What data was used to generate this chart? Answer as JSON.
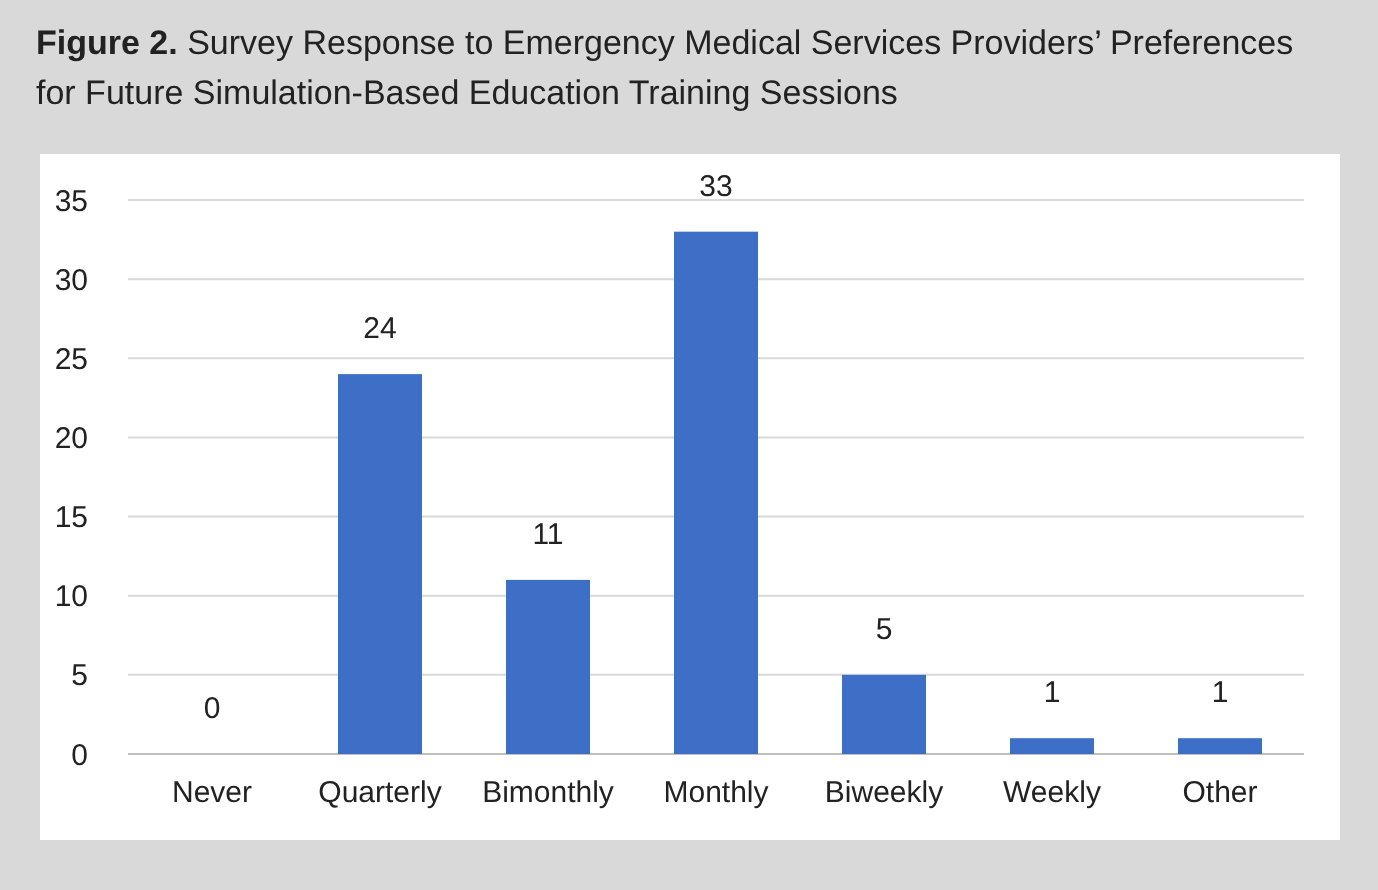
{
  "chart_data": {
    "type": "bar",
    "title": "Figure 2. Survey Response to Emergency Medical Services Providers’ Preferences for Future Simulation-Based Education Training Sessions",
    "categories": [
      "Never",
      "Quarterly",
      "Bimonthly",
      "Monthly",
      "Biweekly",
      "Weekly",
      "Other"
    ],
    "values": [
      0,
      24,
      11,
      33,
      5,
      1,
      1
    ],
    "color": "#3d6fc6",
    "ylim": [
      0,
      35
    ],
    "yticks": [
      0,
      5,
      10,
      15,
      20,
      25,
      30,
      35
    ],
    "grid": "y",
    "data_labels": true
  }
}
